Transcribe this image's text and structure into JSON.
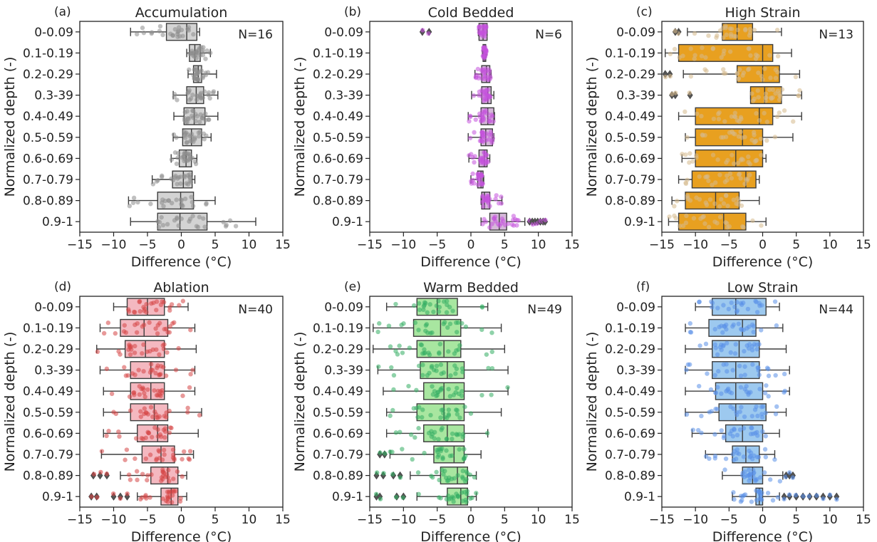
{
  "figure": {
    "categories": [
      "0-0.09",
      "0.1-0.19",
      "0.2-0.29",
      "0.3-39",
      "0.4-0.49",
      "0.5-0.59",
      "0.6-0.69",
      "0.7-0.79",
      "0.8-0.89",
      "0.9-1"
    ],
    "xlabel": "Difference (°C)",
    "ylabel": "Normalized depth (-)"
  },
  "chart_data": [
    {
      "type": "box",
      "panel_label": "(a)",
      "title": "Accumulation",
      "n_label": "N=16",
      "color": "#d3d3d3",
      "point_color": "#8c8c8c",
      "xlim": [
        -15,
        15
      ],
      "xticks": [
        -15,
        -10,
        -5,
        0,
        5,
        10,
        15
      ],
      "categories": [
        "0-0.09",
        "0.1-0.19",
        "0.2-0.29",
        "0.3-39",
        "0.4-0.49",
        "0.5-0.59",
        "0.6-0.69",
        "0.7-0.79",
        "0.8-0.89",
        "0.9-1"
      ],
      "boxes": [
        {
          "whislo": -7.5,
          "q1": -2.2,
          "med": 0.8,
          "q3": 2.3,
          "whishi": 2.7,
          "fliers": []
        },
        {
          "whislo": 0.8,
          "q1": 1.2,
          "med": 2.0,
          "q3": 2.8,
          "whishi": 4.3,
          "fliers": []
        },
        {
          "whislo": 1.0,
          "q1": 1.8,
          "med": 2.5,
          "q3": 3.0,
          "whishi": 5.2,
          "fliers": []
        },
        {
          "whislo": -1.2,
          "q1": 0.8,
          "med": 2.2,
          "q3": 3.3,
          "whishi": 5.4,
          "fliers": []
        },
        {
          "whislo": -1.1,
          "q1": 0.4,
          "med": 1.9,
          "q3": 3.5,
          "whishi": 5.4,
          "fliers": []
        },
        {
          "whislo": -1.2,
          "q1": 0.2,
          "med": 1.5,
          "q3": 3.0,
          "whishi": 4.4,
          "fliers": []
        },
        {
          "whislo": -1.5,
          "q1": -0.3,
          "med": 0.7,
          "q3": 1.5,
          "whishi": 2.3,
          "fliers": []
        },
        {
          "whislo": -4.3,
          "q1": -1.3,
          "med": 0.3,
          "q3": 1.6,
          "whishi": 2.0,
          "fliers": []
        },
        {
          "whislo": -7.8,
          "q1": -3.5,
          "med": -0.1,
          "q3": 1.8,
          "whishi": 5.0,
          "fliers": []
        },
        {
          "whislo": -7.5,
          "q1": -3.5,
          "med": -0.2,
          "q3": 3.8,
          "whishi": 11.0,
          "fliers": []
        }
      ]
    },
    {
      "type": "box",
      "panel_label": "(b)",
      "title": "Cold Bedded",
      "n_label": "N=6",
      "color": "#d5b8d9",
      "point_color": "#c552dc",
      "xlim": [
        -15,
        15
      ],
      "xticks": [
        -15,
        -10,
        -5,
        0,
        5,
        10,
        15
      ],
      "categories": [
        "0-0.09",
        "0.1-0.19",
        "0.2-0.29",
        "0.3-39",
        "0.4-0.49",
        "0.5-0.59",
        "0.6-0.69",
        "0.7-0.79",
        "0.8-0.89",
        "0.9-1"
      ],
      "boxes": [
        {
          "whislo": 1.1,
          "q1": 1.2,
          "med": 1.8,
          "q3": 2.4,
          "whishi": 2.4,
          "fliers": [
            -7.2,
            -6.2
          ]
        },
        {
          "whislo": 1.7,
          "q1": 1.8,
          "med": 2.0,
          "q3": 2.2,
          "whishi": 2.3,
          "fliers": []
        },
        {
          "whislo": 0.6,
          "q1": 1.6,
          "med": 2.3,
          "q3": 2.8,
          "whishi": 3.0,
          "fliers": []
        },
        {
          "whislo": 0.1,
          "q1": 1.6,
          "med": 2.5,
          "q3": 3.0,
          "whishi": 3.4,
          "fliers": []
        },
        {
          "whislo": -0.4,
          "q1": 1.5,
          "med": 2.5,
          "q3": 3.4,
          "whishi": 3.5,
          "fliers": []
        },
        {
          "whislo": -0.4,
          "q1": 1.5,
          "med": 2.2,
          "q3": 3.2,
          "whishi": 3.4,
          "fliers": []
        },
        {
          "whislo": -0.3,
          "q1": 1.2,
          "med": 2.0,
          "q3": 2.4,
          "whishi": 2.8,
          "fliers": []
        },
        {
          "whislo": 0.0,
          "q1": 1.0,
          "med": 1.5,
          "q3": 1.8,
          "whishi": 1.9,
          "fliers": []
        },
        {
          "whislo": 1.5,
          "q1": 1.6,
          "med": 2.0,
          "q3": 2.8,
          "whishi": 4.6,
          "fliers": []
        },
        {
          "whislo": 1.5,
          "q1": 2.8,
          "med": 4.2,
          "q3": 5.3,
          "whishi": 8.0,
          "fliers": [
            8.7,
            9.1,
            9.5,
            9.9,
            10.3,
            10.7,
            11.0
          ]
        }
      ]
    },
    {
      "type": "box",
      "panel_label": "(c)",
      "title": "High Strain",
      "n_label": "N=13",
      "color": "#e8a020",
      "point_color": "#d6b98c",
      "xlim": [
        -15,
        15
      ],
      "xticks": [
        -15,
        -10,
        -5,
        0,
        5,
        10,
        15
      ],
      "categories": [
        "0-0.09",
        "0.1-0.19",
        "0.2-0.29",
        "0.3-39",
        "0.4-0.49",
        "0.5-0.59",
        "0.6-0.69",
        "0.7-0.79",
        "0.8-0.89",
        "0.9-1"
      ],
      "boxes": [
        {
          "whislo": -11.2,
          "q1": -6.0,
          "med": -3.8,
          "q3": -1.5,
          "whishi": 2.8,
          "fliers": [
            -12.5,
            -13.0
          ]
        },
        {
          "whislo": -14.5,
          "q1": -12.5,
          "med": 0.0,
          "q3": 1.5,
          "whishi": 4.3,
          "fliers": []
        },
        {
          "whislo": -11.8,
          "q1": -3.8,
          "med": 0.0,
          "q3": 2.5,
          "whishi": 5.5,
          "fliers": [
            -13.8,
            -14.5
          ]
        },
        {
          "whislo": -1.8,
          "q1": -1.8,
          "med": 0.3,
          "q3": 2.8,
          "whishi": 5.8,
          "fliers": [
            -13.0,
            -13.5,
            -10.8
          ]
        },
        {
          "whislo": -12.5,
          "q1": -10.0,
          "med": -0.5,
          "q3": 1.5,
          "whishi": 5.8,
          "fliers": []
        },
        {
          "whislo": -11.5,
          "q1": -10.0,
          "med": -3.0,
          "q3": 0.0,
          "whishi": 4.5,
          "fliers": []
        },
        {
          "whislo": -12.0,
          "q1": -10.0,
          "med": -4.0,
          "q3": 0.0,
          "whishi": 0.5,
          "fliers": []
        },
        {
          "whislo": -12.5,
          "q1": -10.5,
          "med": -2.5,
          "q3": -1.0,
          "whishi": -0.5,
          "fliers": []
        },
        {
          "whislo": -13.5,
          "q1": -11.5,
          "med": -7.0,
          "q3": -3.5,
          "whishi": -0.5,
          "fliers": []
        },
        {
          "whislo": -14.0,
          "q1": -12.5,
          "med": -5.8,
          "q3": -2.5,
          "whishi": 0.5,
          "fliers": []
        }
      ]
    },
    {
      "type": "box",
      "panel_label": "(d)",
      "title": "Ablation",
      "n_label": "N=40",
      "color": "#f4b8c0",
      "point_color": "#d64545",
      "xlim": [
        -15,
        15
      ],
      "xticks": [
        -15,
        -10,
        -5,
        0,
        5,
        10,
        15
      ],
      "categories": [
        "0-0.09",
        "0.1-0.19",
        "0.2-0.29",
        "0.3-39",
        "0.4-0.49",
        "0.5-0.59",
        "0.6-0.69",
        "0.7-0.79",
        "0.8-0.89",
        "0.9-1"
      ],
      "boxes": [
        {
          "whislo": -10.0,
          "q1": -8.0,
          "med": -5.0,
          "q3": -2.5,
          "whishi": 1.0,
          "fliers": []
        },
        {
          "whislo": -12.0,
          "q1": -9.0,
          "med": -5.5,
          "q3": -2.0,
          "whishi": 2.0,
          "fliers": []
        },
        {
          "whislo": -12.5,
          "q1": -8.3,
          "med": -5.3,
          "q3": -2.5,
          "whishi": 2.2,
          "fliers": []
        },
        {
          "whislo": -12.0,
          "q1": -7.5,
          "med": -4.5,
          "q3": -2.5,
          "whishi": 2.0,
          "fliers": []
        },
        {
          "whislo": -11.5,
          "q1": -7.5,
          "med": -4.5,
          "q3": -2.5,
          "whishi": 2.0,
          "fliers": []
        },
        {
          "whislo": -11.5,
          "q1": -7.5,
          "med": -4.0,
          "q3": -2.0,
          "whishi": 3.0,
          "fliers": []
        },
        {
          "whislo": -11.5,
          "q1": -6.5,
          "med": -3.5,
          "q3": -2.0,
          "whishi": 2.5,
          "fliers": []
        },
        {
          "whislo": -11.8,
          "q1": -5.8,
          "med": -3.0,
          "q3": -1.0,
          "whishi": 1.8,
          "fliers": []
        },
        {
          "whislo": -9.0,
          "q1": -4.5,
          "med": -2.0,
          "q3": -0.5,
          "whishi": 0.8,
          "fliers": [
            -13.0,
            -12.0,
            -11.0
          ]
        },
        {
          "whislo": -6.5,
          "q1": -3.0,
          "med": -1.5,
          "q3": -0.5,
          "whishi": 0.8,
          "fliers": [
            -13.3,
            -12.5,
            -10.0,
            -9.0,
            -8.0
          ]
        }
      ]
    },
    {
      "type": "box",
      "panel_label": "(e)",
      "title": "Warm Bedded",
      "n_label": "N=49",
      "color": "#a8e6a0",
      "point_color": "#33ad62",
      "xlim": [
        -15,
        15
      ],
      "xticks": [
        -15,
        -10,
        -5,
        0,
        5,
        10,
        15
      ],
      "categories": [
        "0-0.09",
        "0.1-0.19",
        "0.2-0.29",
        "0.3-39",
        "0.4-0.49",
        "0.5-0.59",
        "0.6-0.69",
        "0.7-0.79",
        "0.8-0.89",
        "0.9-1"
      ],
      "boxes": [
        {
          "whislo": -12.5,
          "q1": -8.0,
          "med": -5.0,
          "q3": -2.0,
          "whishi": 2.5,
          "fliers": []
        },
        {
          "whislo": -14.5,
          "q1": -8.5,
          "med": -4.5,
          "q3": -1.5,
          "whishi": 4.5,
          "fliers": []
        },
        {
          "whislo": -14.5,
          "q1": -8.0,
          "med": -4.0,
          "q3": -1.5,
          "whishi": 5.0,
          "fliers": []
        },
        {
          "whislo": -13.8,
          "q1": -7.5,
          "med": -3.5,
          "q3": -1.0,
          "whishi": 5.5,
          "fliers": []
        },
        {
          "whislo": -13.0,
          "q1": -7.0,
          "med": -4.0,
          "q3": -1.0,
          "whishi": 5.5,
          "fliers": []
        },
        {
          "whislo": -12.5,
          "q1": -8.0,
          "med": -4.0,
          "q3": -1.0,
          "whishi": 4.5,
          "fliers": []
        },
        {
          "whislo": -12.5,
          "q1": -7.0,
          "med": -3.5,
          "q3": -1.0,
          "whishi": 2.5,
          "fliers": []
        },
        {
          "whislo": -12.0,
          "q1": -5.5,
          "med": -2.5,
          "q3": -1.0,
          "whishi": 1.5,
          "fliers": [
            -13.5,
            -12.8
          ]
        },
        {
          "whislo": -9.0,
          "q1": -4.5,
          "med": -2.0,
          "q3": -0.5,
          "whishi": 0.8,
          "fliers": [
            -14.0,
            -13.0,
            -11.5,
            -10.5
          ]
        },
        {
          "whislo": -8.0,
          "q1": -3.5,
          "med": -1.5,
          "q3": -0.5,
          "whishi": 0.8,
          "fliers": [
            -14.0,
            -13.5,
            -11.0,
            -10.0
          ]
        }
      ]
    },
    {
      "type": "box",
      "panel_label": "(f)",
      "title": "Low Strain",
      "n_label": "N=44",
      "color": "#9dc9ef",
      "point_color": "#5a90e8",
      "xlim": [
        -15,
        15
      ],
      "xticks": [
        -15,
        -10,
        -5,
        0,
        5,
        10,
        15
      ],
      "categories": [
        "0-0.09",
        "0.1-0.19",
        "0.2-0.29",
        "0.3-39",
        "0.4-0.49",
        "0.5-0.59",
        "0.6-0.69",
        "0.7-0.79",
        "0.8-0.89",
        "0.9-1"
      ],
      "boxes": [
        {
          "whislo": -10.0,
          "q1": -7.5,
          "med": -4.0,
          "q3": 0.5,
          "whishi": 2.5,
          "fliers": []
        },
        {
          "whislo": -11.5,
          "q1": -8.0,
          "med": -3.0,
          "q3": -1.0,
          "whishi": 3.0,
          "fliers": []
        },
        {
          "whislo": -11.5,
          "q1": -7.5,
          "med": -3.5,
          "q3": -0.5,
          "whishi": 3.5,
          "fliers": []
        },
        {
          "whislo": -11.5,
          "q1": -7.5,
          "med": -4.0,
          "q3": -0.5,
          "whishi": 4.0,
          "fliers": []
        },
        {
          "whislo": -11.5,
          "q1": -7.0,
          "med": -4.0,
          "q3": 0.0,
          "whishi": 4.0,
          "fliers": []
        },
        {
          "whislo": -11.5,
          "q1": -6.5,
          "med": -4.0,
          "q3": 0.5,
          "whishi": 3.5,
          "fliers": []
        },
        {
          "whislo": -10.5,
          "q1": -5.5,
          "med": -3.0,
          "q3": 0.0,
          "whishi": 2.5,
          "fliers": []
        },
        {
          "whislo": -8.5,
          "q1": -4.5,
          "med": -2.5,
          "q3": -0.5,
          "whishi": 1.8,
          "fliers": []
        },
        {
          "whislo": -6.0,
          "q1": -3.0,
          "med": -1.5,
          "q3": 0.0,
          "whishi": 3.0,
          "fliers": [
            3.5,
            4.0,
            4.5
          ]
        },
        {
          "whislo": -4.5,
          "q1": -1.0,
          "med": -0.5,
          "q3": 0.0,
          "whishi": 2.5,
          "fliers": [
            3.2,
            4.0,
            5.0,
            6.0,
            7.0,
            8.0,
            9.0,
            10.0,
            11.0
          ]
        }
      ]
    }
  ]
}
